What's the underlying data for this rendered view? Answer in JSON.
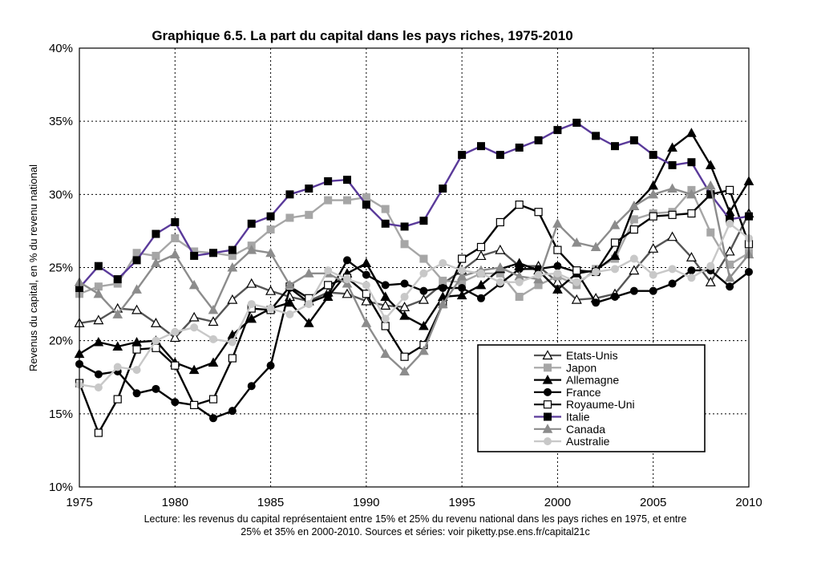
{
  "chart_data": {
    "type": "line",
    "title": "Graphique 6.5. La part du capital dans les pays riches, 1975-2010",
    "ylabel": "Revenus du capital, en % du revenu national",
    "xlabel": "",
    "xlim": [
      1975,
      2010
    ],
    "ylim": [
      10,
      40
    ],
    "x_ticks": [
      "1975",
      "1980",
      "1985",
      "1990",
      "1995",
      "2000",
      "2005",
      "2010"
    ],
    "y_ticks": [
      "10%",
      "15%",
      "20%",
      "25%",
      "30%",
      "35%",
      "40%"
    ],
    "grid": "dotted",
    "legend_position": "bottom-right",
    "note_lines": [
      "Lecture: les revenus du capital représentaient entre 15% et 25% du revenu national dans les pays riches en 1975, et entre",
      "25% et 35% en 2000-2010. Sources et séries: voir piketty.pse.ens.fr/capital21c"
    ],
    "x": [
      1975,
      1976,
      1977,
      1978,
      1979,
      1980,
      1981,
      1982,
      1983,
      1984,
      1985,
      1986,
      1987,
      1988,
      1989,
      1990,
      1991,
      1992,
      1993,
      1994,
      1995,
      1996,
      1997,
      1998,
      1999,
      2000,
      2001,
      2002,
      2003,
      2004,
      2005,
      2006,
      2007,
      2008,
      2009,
      2010
    ],
    "series": [
      {
        "name": "Etats-Unis",
        "color": "#555555",
        "marker": "triangle-open",
        "values": [
          21.2,
          21.4,
          22.2,
          22.1,
          21.2,
          20.2,
          21.6,
          21.3,
          22.8,
          23.9,
          23.4,
          23.0,
          22.7,
          23.3,
          23.2,
          22.7,
          22.4,
          22.3,
          22.8,
          23.9,
          24.8,
          25.8,
          26.2,
          25.1,
          25.1,
          24.0,
          22.8,
          22.9,
          23.2,
          24.8,
          26.3,
          27.1,
          25.7,
          24.0,
          26.1,
          28.7
        ]
      },
      {
        "name": "Japon",
        "color": "#a6a6a6",
        "marker": "square-filled",
        "values": [
          23.2,
          23.7,
          23.9,
          26.0,
          25.8,
          27.0,
          26.1,
          26.0,
          25.8,
          26.5,
          27.6,
          28.4,
          28.6,
          29.6,
          29.6,
          29.8,
          29.0,
          26.6,
          25.6,
          24.1,
          24.0,
          24.6,
          24.6,
          23.0,
          23.8,
          24.4,
          23.8,
          24.9,
          25.6,
          28.3,
          28.7,
          28.8,
          30.3,
          27.4,
          25.2,
          26.0
        ]
      },
      {
        "name": "Allemagne",
        "color": "#000000",
        "marker": "triangle-filled",
        "values": [
          19.1,
          19.9,
          19.6,
          19.9,
          20.0,
          18.5,
          18.0,
          18.5,
          20.4,
          21.5,
          22.2,
          22.6,
          21.2,
          23.0,
          24.6,
          25.3,
          23.0,
          21.7,
          21.0,
          23.0,
          23.1,
          23.8,
          24.9,
          25.3,
          24.8,
          23.5,
          24.6,
          24.8,
          25.8,
          29.2,
          30.6,
          33.2,
          34.2,
          32.0,
          28.8,
          30.9
        ]
      },
      {
        "name": "France",
        "color": "#000000",
        "marker": "circle-filled",
        "values": [
          18.4,
          17.7,
          17.9,
          16.4,
          16.7,
          15.8,
          15.6,
          14.7,
          15.2,
          16.9,
          18.3,
          23.6,
          22.6,
          23.1,
          25.5,
          24.5,
          23.8,
          23.9,
          23.4,
          23.6,
          23.6,
          22.9,
          23.9,
          24.9,
          24.9,
          25.1,
          24.7,
          22.6,
          23.0,
          23.4,
          23.4,
          23.9,
          24.8,
          24.8,
          23.7,
          24.7
        ]
      },
      {
        "name": "Royaume-Uni",
        "color": "#000000",
        "marker": "square-open",
        "values": [
          17.1,
          13.7,
          16.0,
          19.4,
          19.5,
          18.3,
          15.6,
          16.0,
          18.8,
          22.2,
          22.1,
          23.7,
          22.9,
          23.8,
          24.3,
          23.2,
          21.0,
          18.9,
          19.7,
          22.5,
          25.6,
          26.4,
          28.1,
          29.3,
          28.8,
          26.2,
          24.8,
          24.7,
          26.7,
          27.6,
          28.5,
          28.6,
          28.7,
          30.0,
          30.3,
          26.6
        ]
      },
      {
        "name": "Italie",
        "color": "#5a3a9a",
        "marker": "square-black",
        "values": [
          23.6,
          25.1,
          24.2,
          25.5,
          27.3,
          28.1,
          25.8,
          26.0,
          26.2,
          28.0,
          28.5,
          30.0,
          30.4,
          30.9,
          31.0,
          29.3,
          28.0,
          27.8,
          28.2,
          30.4,
          32.7,
          33.3,
          32.7,
          33.2,
          33.7,
          34.4,
          34.9,
          34.0,
          33.3,
          33.7,
          32.7,
          32.0,
          32.2,
          30.0,
          28.3,
          28.5
        ]
      },
      {
        "name": "Canada",
        "color": "#8c8c8c",
        "marker": "triangle-gray",
        "values": [
          24.0,
          23.2,
          21.8,
          23.5,
          25.3,
          25.9,
          23.8,
          22.1,
          25.0,
          26.2,
          26.0,
          23.8,
          24.6,
          24.6,
          23.9,
          21.2,
          19.1,
          17.9,
          19.3,
          22.5,
          24.4,
          24.8,
          25.0,
          24.4,
          24.2,
          28.0,
          26.7,
          26.4,
          27.9,
          29.2,
          30.0,
          30.4,
          30.0,
          30.6,
          24.3,
          25.9
        ]
      },
      {
        "name": "Australie",
        "color": "#c8c8c8",
        "marker": "circle-light",
        "values": [
          17.0,
          16.8,
          18.2,
          18.0,
          20.0,
          20.6,
          20.9,
          20.1,
          19.9,
          22.5,
          22.2,
          21.8,
          22.5,
          24.8,
          24.2,
          23.8,
          21.5,
          23.0,
          24.6,
          25.3,
          24.8,
          24.6,
          24.0,
          24.0,
          24.5,
          24.6,
          24.0,
          24.7,
          24.9,
          25.6,
          24.5,
          24.9,
          24.3,
          25.1,
          28.0,
          27.0
        ]
      }
    ]
  }
}
